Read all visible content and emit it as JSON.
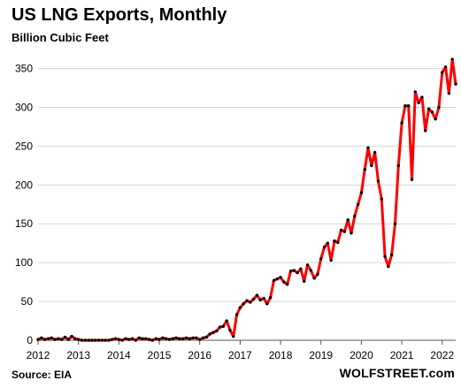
{
  "chart_data": {
    "type": "line",
    "title": "US LNG Exports,  Monthly",
    "subtitle": "Billion Cubic Feet",
    "source": "Source: EIA",
    "brand": "WOLFSTREET.com",
    "xlabel": "",
    "ylabel": "",
    "x_ticks": [
      "2012",
      "2013",
      "2014",
      "2015",
      "2016",
      "2017",
      "2018",
      "2019",
      "2020",
      "2021",
      "2022"
    ],
    "y_ticks": [
      0,
      50,
      100,
      150,
      200,
      250,
      300,
      350
    ],
    "ylim": [
      0,
      370
    ],
    "xlim": [
      "2012-01",
      "2022-05"
    ],
    "grid": true,
    "line_color": "#ff0000",
    "marker_color": "#000000",
    "series": [
      {
        "x": [
          "2012-01",
          "2012-02",
          "2012-03",
          "2012-04",
          "2012-05",
          "2012-06",
          "2012-07",
          "2012-08",
          "2012-09",
          "2012-10",
          "2012-11",
          "2012-12",
          "2013-01",
          "2013-02",
          "2013-03",
          "2013-04",
          "2013-05",
          "2013-06",
          "2013-07",
          "2013-08",
          "2013-09",
          "2013-10",
          "2013-11",
          "2013-12",
          "2014-01",
          "2014-02",
          "2014-03",
          "2014-04",
          "2014-05",
          "2014-06",
          "2014-07",
          "2014-08",
          "2014-09",
          "2014-10",
          "2014-11",
          "2014-12",
          "2015-01",
          "2015-02",
          "2015-03",
          "2015-04",
          "2015-05",
          "2015-06",
          "2015-07",
          "2015-08",
          "2015-09",
          "2015-10",
          "2015-11",
          "2015-12",
          "2016-01",
          "2016-02",
          "2016-03",
          "2016-04",
          "2016-05",
          "2016-06",
          "2016-07",
          "2016-08",
          "2016-09",
          "2016-10",
          "2016-11",
          "2016-12",
          "2017-01",
          "2017-02",
          "2017-03",
          "2017-04",
          "2017-05",
          "2017-06",
          "2017-07",
          "2017-08",
          "2017-09",
          "2017-10",
          "2017-11",
          "2017-12",
          "2018-01",
          "2018-02",
          "2018-03",
          "2018-04",
          "2018-05",
          "2018-06",
          "2018-07",
          "2018-08",
          "2018-09",
          "2018-10",
          "2018-11",
          "2018-12",
          "2019-01",
          "2019-02",
          "2019-03",
          "2019-04",
          "2019-05",
          "2019-06",
          "2019-07",
          "2019-08",
          "2019-09",
          "2019-10",
          "2019-11",
          "2019-12",
          "2020-01",
          "2020-02",
          "2020-03",
          "2020-04",
          "2020-05",
          "2020-06",
          "2020-07",
          "2020-08",
          "2020-09",
          "2020-10",
          "2020-11",
          "2020-12",
          "2021-01",
          "2021-02",
          "2021-03",
          "2021-04",
          "2021-05",
          "2021-06",
          "2021-07",
          "2021-08",
          "2021-09",
          "2021-10",
          "2021-11",
          "2021-12",
          "2022-01",
          "2022-02",
          "2022-03",
          "2022-04",
          "2022-05"
        ],
        "values": [
          1,
          3,
          1,
          2,
          3,
          1,
          2,
          1,
          4,
          1,
          5,
          2,
          1,
          0,
          0,
          0,
          0,
          0,
          0,
          0,
          0,
          0,
          1,
          2,
          1,
          0,
          2,
          1,
          2,
          0,
          3,
          2,
          2,
          1,
          0,
          2,
          1,
          3,
          2,
          1,
          2,
          3,
          2,
          2,
          3,
          2,
          3,
          3,
          1,
          3,
          4,
          8,
          10,
          12,
          17,
          18,
          25,
          13,
          5,
          33,
          42,
          47,
          51,
          49,
          53,
          58,
          52,
          54,
          47,
          55,
          77,
          79,
          81,
          75,
          72,
          89,
          90,
          87,
          92,
          76,
          97,
          90,
          80,
          85,
          105,
          120,
          125,
          103,
          128,
          126,
          142,
          140,
          155,
          138,
          160,
          175,
          190,
          220,
          248,
          225,
          242,
          205,
          182,
          108,
          95,
          110,
          150,
          225,
          280,
          302,
          302,
          207,
          320,
          306,
          313,
          270,
          298,
          294,
          285,
          300,
          345,
          352,
          318,
          362,
          330
        ]
      }
    ]
  }
}
